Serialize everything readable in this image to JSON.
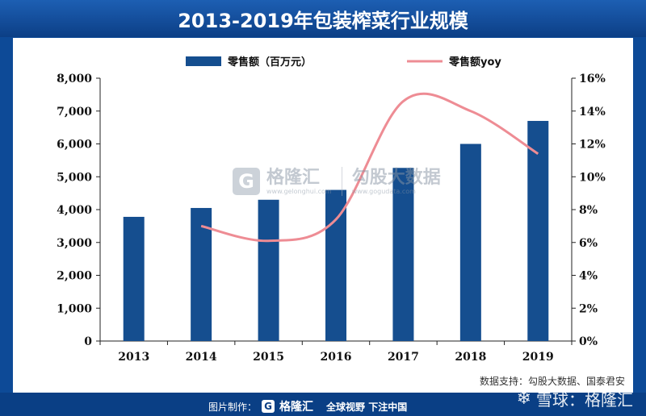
{
  "title": "2013-2019年包装榨菜行业规模",
  "chart_data": {
    "type": "bar",
    "categories": [
      "2013",
      "2014",
      "2015",
      "2016",
      "2017",
      "2018",
      "2019"
    ],
    "series": [
      {
        "name": "零售额（百万元）",
        "type": "bar",
        "axis": "left",
        "values": [
          3780,
          4050,
          4300,
          4600,
          5270,
          6000,
          6700
        ]
      },
      {
        "name": "零售额yoy",
        "type": "line",
        "axis": "right",
        "values": [
          null,
          7.0,
          6.1,
          7.4,
          14.6,
          14.0,
          11.4
        ]
      }
    ],
    "y_left": {
      "min": 0,
      "max": 8000,
      "ticks": [
        "0",
        "1,000",
        "2,000",
        "3,000",
        "4,000",
        "5,000",
        "6,000",
        "7,000",
        "8,000"
      ]
    },
    "y_right": {
      "min": 0,
      "max": 16,
      "ticks": [
        "0%",
        "2%",
        "4%",
        "6%",
        "8%",
        "10%",
        "12%",
        "14%",
        "16%"
      ]
    },
    "legend_position": "top",
    "colors": {
      "bar": "#154e8f",
      "line": "#ee8c94"
    }
  },
  "source": "数据支持：勾股大数据、国泰君安",
  "watermark": {
    "brand": "格隆汇",
    "url": "www.gelonghui.com",
    "partner": "勾股大数据",
    "partner_url": "www.gogudata.com",
    "g_letter": "G"
  },
  "footer": {
    "credit_label": "图片制作：",
    "brand": "格隆汇",
    "slogan": "全球视野 下注中国",
    "g_letter": "G"
  },
  "xueqiu": {
    "text": "雪球：格隆汇",
    "icon": "snowball-icon"
  }
}
